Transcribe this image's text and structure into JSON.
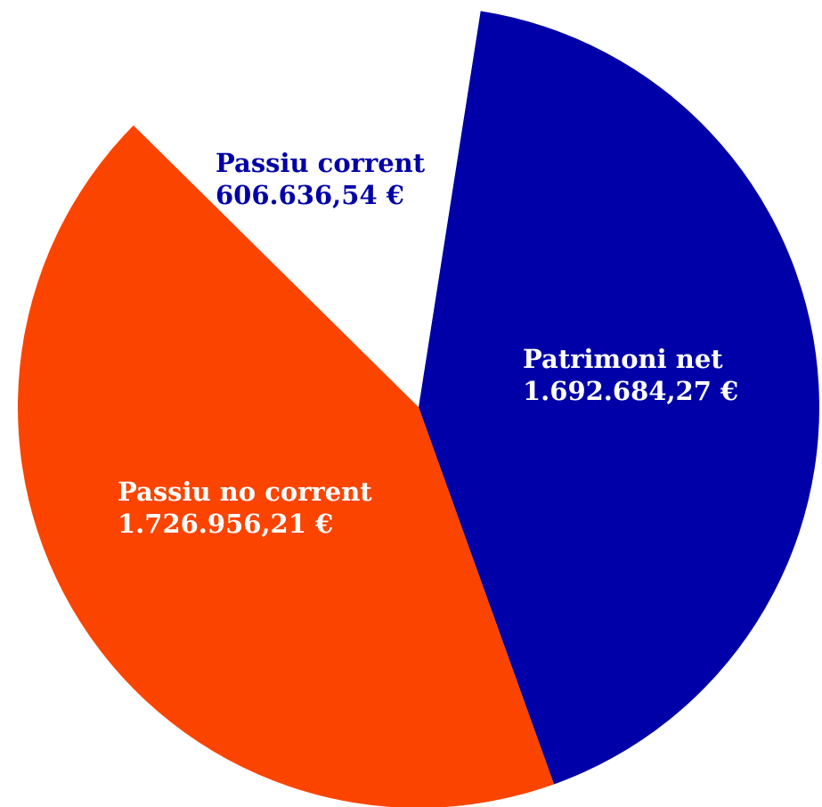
{
  "chart_data": {
    "type": "pie",
    "title": "",
    "slices": [
      {
        "label": "Patrimoni net",
        "value": 1692684.27,
        "value_label": "1.692.684,27 €",
        "color": "#0000a8",
        "label_color": "#ffffff"
      },
      {
        "label": "Passiu no corrent",
        "value": 1726956.21,
        "value_label": "1.726.956,21 €",
        "color": "#fb4400",
        "label_color": "#ffffff"
      },
      {
        "label": "Passiu corrent",
        "value": 606636.54,
        "value_label": "606.636,54 €",
        "color": "#ffffff",
        "label_color": "#0000a8"
      }
    ],
    "legend": "none"
  }
}
